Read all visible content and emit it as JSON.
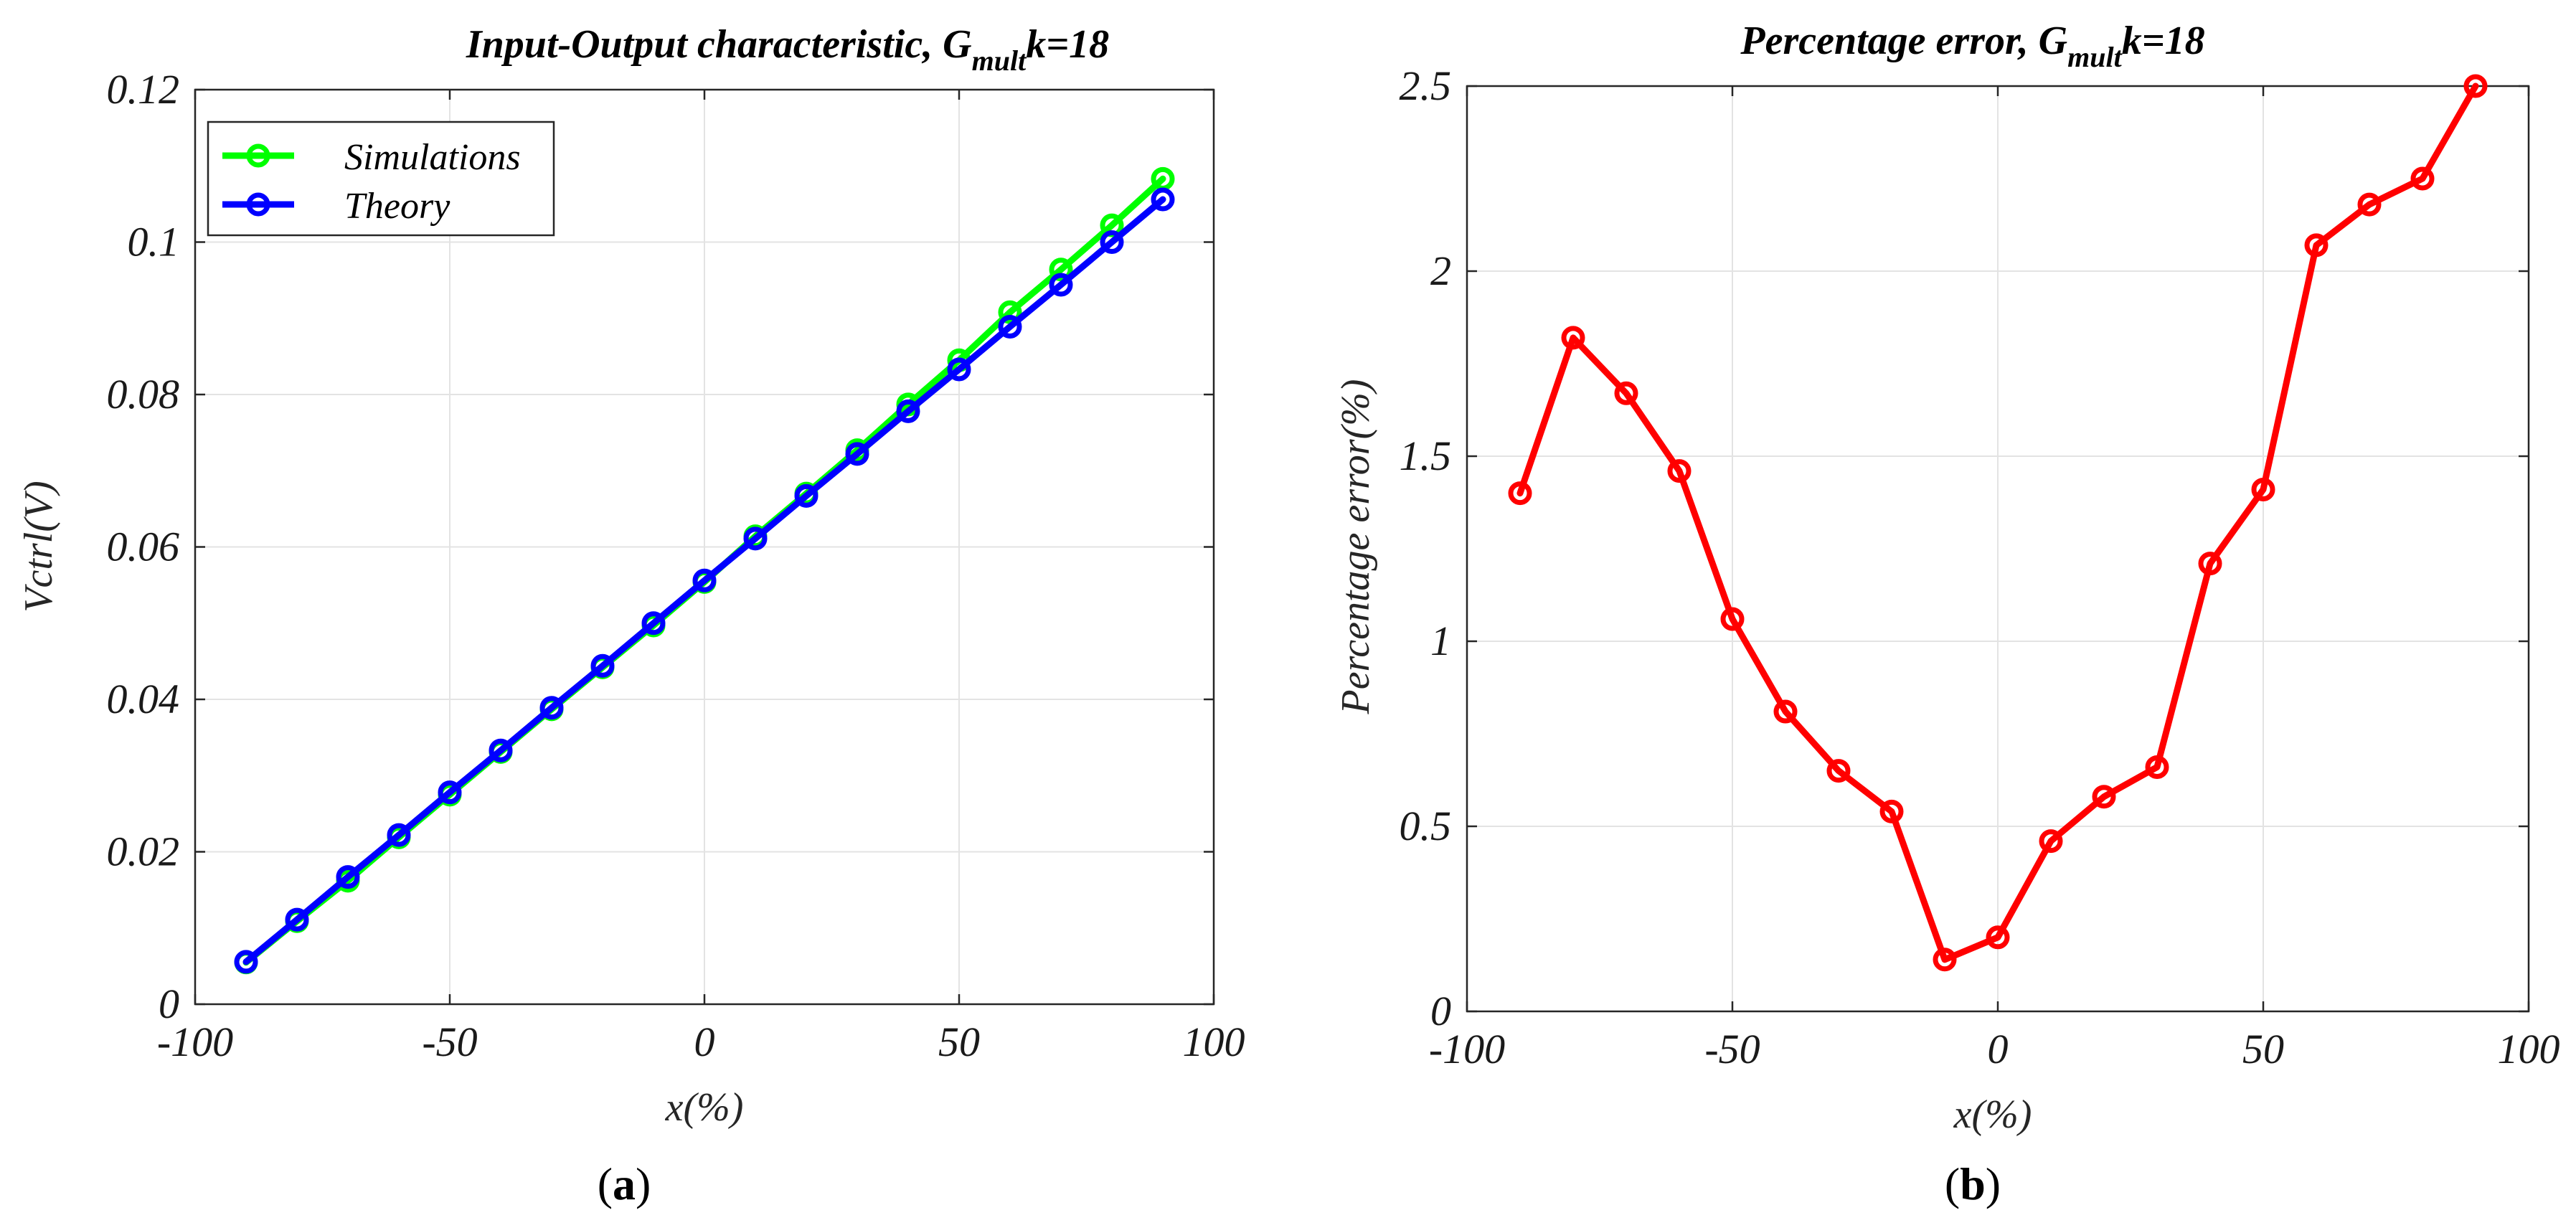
{
  "chart_data": [
    {
      "type": "line",
      "title": {
        "main": "Input-Output characteristic, G",
        "subscript": "mult",
        "suffix": "k=18"
      },
      "xlabel": "x(%)",
      "ylabel": "Vctrl(V)",
      "xlim": [
        -100,
        100
      ],
      "ylim": [
        0,
        0.12
      ],
      "xticks": [
        -100,
        -50,
        0,
        50,
        100
      ],
      "yticks": [
        0,
        0.02,
        0.04,
        0.06,
        0.08,
        0.1,
        0.12
      ],
      "ytick_labels": [
        "0",
        "0.02",
        "0.04",
        "0.06",
        "0.08",
        "0.1",
        "0.12"
      ],
      "grid": true,
      "legend_position": "top-left",
      "x": [
        -90,
        -80,
        -70,
        -60,
        -50,
        -40,
        -30,
        -20,
        -10,
        0,
        10,
        20,
        30,
        40,
        50,
        60,
        70,
        80,
        90
      ],
      "series": [
        {
          "name": "Simulations",
          "color": "#00ff00",
          "values": [
            0.00548,
            0.0109,
            0.0162,
            0.0219,
            0.0275,
            0.0331,
            0.0387,
            0.0442,
            0.0497,
            0.0554,
            0.0614,
            0.067,
            0.0727,
            0.0787,
            0.0845,
            0.0908,
            0.0964,
            0.1022,
            0.1083
          ]
        },
        {
          "name": "Theory",
          "color": "#0000ff",
          "values": [
            0.00556,
            0.0111,
            0.0167,
            0.0222,
            0.0278,
            0.0333,
            0.0389,
            0.0444,
            0.05,
            0.0556,
            0.0611,
            0.0667,
            0.0722,
            0.0778,
            0.0833,
            0.0889,
            0.0944,
            0.1,
            0.1056
          ]
        }
      ],
      "panel_label": {
        "open": "(",
        "letter": "a",
        "close": ")"
      }
    },
    {
      "type": "line",
      "title": {
        "main": "Percentage error, G",
        "subscript": "mult",
        "suffix": "k=18"
      },
      "xlabel": "x(%)",
      "ylabel": "Percentage error(%)",
      "xlim": [
        -100,
        100
      ],
      "ylim": [
        0,
        2.5
      ],
      "xticks": [
        -100,
        -50,
        0,
        50,
        100
      ],
      "yticks": [
        0,
        0.5,
        1,
        1.5,
        2,
        2.5
      ],
      "ytick_labels": [
        "0",
        "0.5",
        "1",
        "1.5",
        "2",
        "2.5"
      ],
      "grid": true,
      "x": [
        -90,
        -80,
        -70,
        -60,
        -50,
        -40,
        -30,
        -20,
        -10,
        0,
        10,
        20,
        30,
        40,
        50,
        60,
        70,
        80,
        90
      ],
      "series": [
        {
          "name": "Percentage error",
          "color": "#ff0000",
          "values": [
            1.4,
            1.82,
            1.67,
            1.46,
            1.06,
            0.81,
            0.65,
            0.54,
            0.14,
            0.2,
            0.46,
            0.58,
            0.66,
            1.21,
            1.41,
            2.07,
            2.18,
            2.25,
            2.5
          ]
        }
      ],
      "panel_label": {
        "open": "(",
        "letter": "b",
        "close": ")"
      }
    }
  ]
}
